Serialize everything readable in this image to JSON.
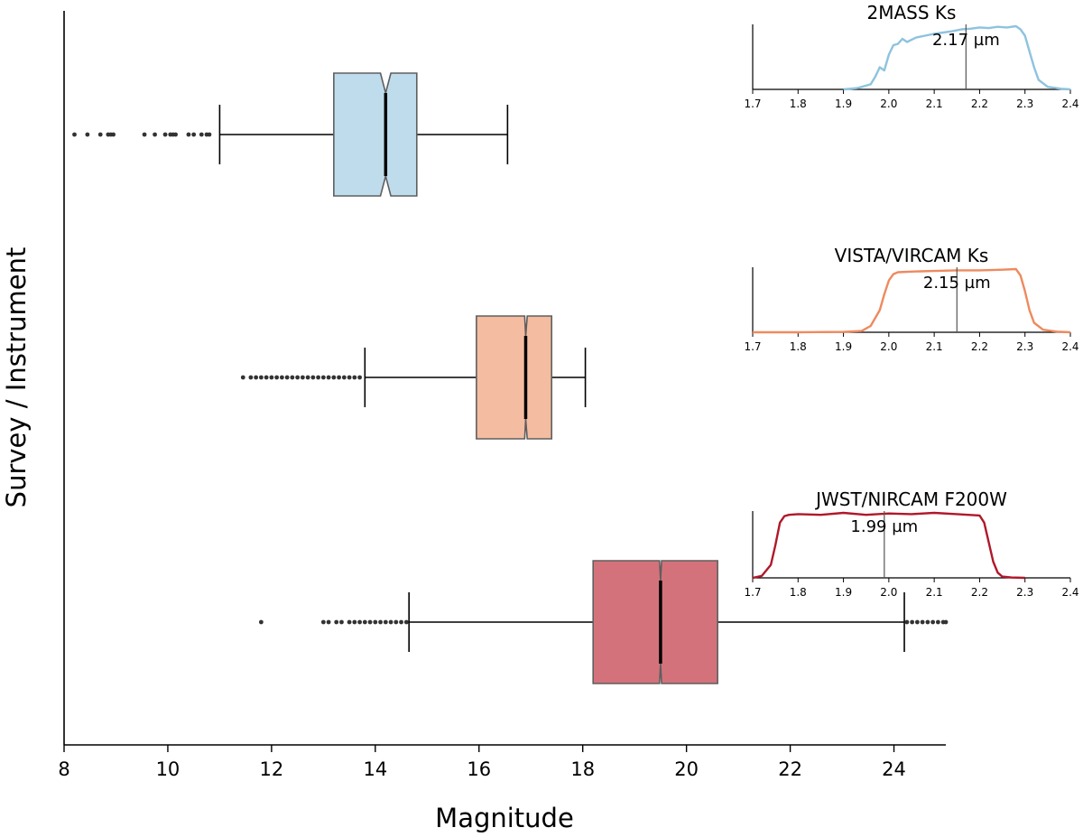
{
  "chart_data": {
    "type": "boxplot",
    "xlabel": "Magnitude",
    "ylabel": "Survey / Instrument",
    "xlim": [
      8,
      25
    ],
    "xticks": [
      "8",
      "10",
      "12",
      "14",
      "16",
      "18",
      "20",
      "22",
      "24"
    ],
    "notched": true,
    "boxes": [
      {
        "name": "2MASS Ks",
        "color": "#bfdcec",
        "q1": 13.2,
        "median": 14.2,
        "q3": 14.8,
        "notch_low": 14.1,
        "notch_high": 14.3,
        "whisker_low": 11.0,
        "whisker_high": 16.55,
        "outliers": [
          8.2,
          8.45,
          8.7,
          8.85,
          8.9,
          8.95,
          9.55,
          9.75,
          9.95,
          10.05,
          10.1,
          10.15,
          10.4,
          10.5,
          10.65,
          10.75,
          10.8
        ]
      },
      {
        "name": "VISTA/VIRCAM Ks",
        "color": "#f4bca1",
        "q1": 15.95,
        "median": 16.9,
        "q3": 17.4,
        "notch_low": 16.88,
        "notch_high": 16.93,
        "whisker_low": 13.8,
        "whisker_high": 18.05,
        "outliers": [
          11.45,
          11.6,
          11.7,
          11.8,
          11.9,
          12.0,
          12.1,
          12.2,
          12.3,
          12.4,
          12.5,
          12.6,
          12.7,
          12.8,
          12.9,
          13.0,
          13.1,
          13.2,
          13.3,
          13.4,
          13.5,
          13.6,
          13.7
        ]
      },
      {
        "name": "JWST/NIRCAM F200W",
        "color": "#d4727b",
        "q1": 18.2,
        "median": 19.5,
        "q3": 20.6,
        "notch_low": 19.48,
        "notch_high": 19.52,
        "whisker_low": 14.65,
        "whisker_high": 24.2,
        "outliers": [
          11.8,
          13.0,
          13.1,
          13.25,
          13.35,
          13.5,
          13.6,
          13.7,
          13.8,
          13.9,
          14.0,
          14.1,
          14.2,
          14.3,
          14.4,
          14.5,
          14.6,
          24.25,
          24.35,
          24.45,
          24.55,
          24.65,
          24.75,
          24.85,
          24.95,
          25.0
        ]
      }
    ],
    "insets": [
      {
        "title": "2MASS Ks",
        "wavelength_label": "2.17 µm",
        "wavelength": 2.17,
        "color": "#8ec3de",
        "xlim": [
          1.7,
          2.4
        ],
        "xticks": [
          "1.7",
          "1.8",
          "1.9",
          "2.0",
          "2.1",
          "2.2",
          "2.3",
          "2.4"
        ],
        "curve_x": [
          1.9,
          1.93,
          1.96,
          1.97,
          1.98,
          1.99,
          2.0,
          2.01,
          2.02,
          2.03,
          2.04,
          2.06,
          2.08,
          2.1,
          2.12,
          2.14,
          2.16,
          2.18,
          2.2,
          2.22,
          2.24,
          2.26,
          2.28,
          2.29,
          2.3,
          2.31,
          2.32,
          2.33,
          2.35,
          2.38,
          2.4
        ],
        "curve_y": [
          0.0,
          0.02,
          0.08,
          0.2,
          0.35,
          0.3,
          0.55,
          0.7,
          0.72,
          0.8,
          0.75,
          0.82,
          0.85,
          0.88,
          0.9,
          0.92,
          0.95,
          0.96,
          0.98,
          0.97,
          0.99,
          0.98,
          1.0,
          0.95,
          0.85,
          0.6,
          0.35,
          0.15,
          0.04,
          0.01,
          0.0
        ]
      },
      {
        "title": "VISTA/VIRCAM Ks",
        "wavelength_label": "2.15 µm",
        "wavelength": 2.15,
        "color": "#ee8a5e",
        "xlim": [
          1.7,
          2.4
        ],
        "xticks": [
          "1.7",
          "1.8",
          "1.9",
          "2.0",
          "2.1",
          "2.2",
          "2.3",
          "2.4"
        ],
        "curve_x": [
          1.7,
          1.8,
          1.9,
          1.94,
          1.96,
          1.98,
          1.99,
          2.0,
          2.01,
          2.02,
          2.05,
          2.1,
          2.15,
          2.2,
          2.25,
          2.28,
          2.29,
          2.3,
          2.31,
          2.32,
          2.34,
          2.37,
          2.4
        ],
        "curve_y": [
          0.0,
          0.0,
          0.005,
          0.02,
          0.1,
          0.35,
          0.6,
          0.82,
          0.92,
          0.95,
          0.96,
          0.97,
          0.98,
          0.98,
          0.99,
          1.0,
          0.9,
          0.65,
          0.35,
          0.15,
          0.04,
          0.01,
          0.0
        ]
      },
      {
        "title": "JWST/NIRCAM F200W",
        "wavelength_label": "1.99 µm",
        "wavelength": 1.99,
        "color": "#b0182a",
        "xlim": [
          1.7,
          2.4
        ],
        "xticks": [
          "1.7",
          "1.8",
          "1.9",
          "2.0",
          "2.1",
          "2.2",
          "2.3",
          "2.4"
        ],
        "curve_x": [
          1.7,
          1.72,
          1.74,
          1.75,
          1.76,
          1.77,
          1.78,
          1.8,
          1.85,
          1.9,
          1.95,
          2.0,
          2.05,
          2.1,
          2.15,
          2.2,
          2.21,
          2.22,
          2.23,
          2.24,
          2.25,
          2.27,
          2.3
        ],
        "curve_y": [
          0.0,
          0.03,
          0.2,
          0.5,
          0.85,
          0.95,
          0.97,
          0.98,
          0.97,
          1.0,
          0.97,
          0.99,
          0.98,
          1.0,
          0.98,
          0.96,
          0.85,
          0.55,
          0.25,
          0.08,
          0.02,
          0.005,
          0.0
        ]
      }
    ]
  }
}
